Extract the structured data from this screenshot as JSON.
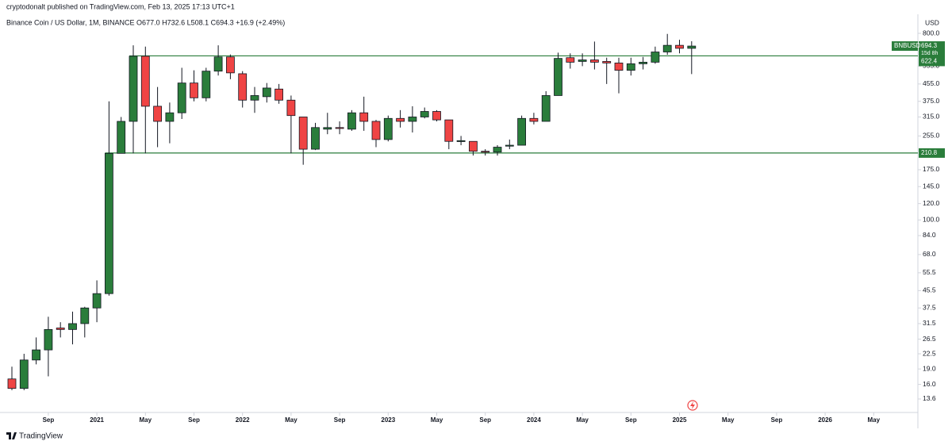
{
  "chart_data": {
    "type": "candlestick",
    "title": "cryptodonalt published on TradingView.com, Feb 13, 2025 17:13 UTC+1",
    "subtitle": "Binance Coin / US Dollar, 1M, BINANCE  O677.0  H732.6  L508.1  C694.3  +16.9 (+2.49%)",
    "symbol": "BNBUSD",
    "countdown": "15d 8h",
    "y_axis_label": "USD",
    "brand": "TradingView",
    "up_color": "#2a7d3b",
    "down_color": "#ef4444",
    "line_color": "#2a7d3b",
    "log": true,
    "open": [
      17,
      15.3,
      21,
      23.5,
      30,
      29.5,
      31.5,
      37.5,
      44,
      210,
      300,
      620,
      355,
      300,
      330,
      460,
      390,
      525,
      615,
      510,
      380,
      395,
      430,
      380,
      315,
      220,
      275,
      280,
      275,
      330,
      300,
      245,
      310,
      300,
      315,
      335,
      305,
      240,
      240,
      215,
      213,
      228,
      230,
      310,
      300,
      400,
      610,
      585,
      595,
      585,
      575,
      530,
      570,
      580,
      650,
      700,
      677.0
    ],
    "high": [
      19.5,
      22.5,
      27,
      34,
      32,
      36,
      38,
      51,
      375,
      315,
      700,
      690,
      440,
      370,
      545,
      530,
      545,
      700,
      632,
      525,
      440,
      460,
      455,
      400,
      315,
      295,
      330,
      300,
      340,
      395,
      305,
      320,
      340,
      355,
      350,
      340,
      305,
      255,
      240,
      220,
      230,
      245,
      320,
      330,
      420,
      645,
      640,
      640,
      730,
      610,
      610,
      610,
      615,
      690,
      795,
      745,
      732.6
    ],
    "low": [
      15,
      15,
      20,
      17.5,
      27,
      25,
      27,
      32,
      43,
      210,
      210,
      210,
      225,
      235,
      308,
      375,
      375,
      500,
      480,
      350,
      330,
      370,
      365,
      210,
      185,
      218,
      260,
      260,
      270,
      270,
      225,
      240,
      280,
      265,
      310,
      300,
      220,
      230,
      205,
      205,
      205,
      220,
      230,
      290,
      300,
      400,
      540,
      555,
      535,
      455,
      410,
      500,
      535,
      570,
      630,
      640,
      508.1
    ],
    "close": [
      15.3,
      21,
      23.5,
      29.5,
      29.5,
      31.5,
      37.5,
      44,
      210,
      300,
      620,
      355,
      300,
      330,
      460,
      390,
      525,
      615,
      515,
      380,
      400,
      435,
      380,
      320,
      220,
      280,
      280,
      278,
      330,
      300,
      245,
      310,
      300,
      315,
      335,
      305,
      240,
      242,
      215,
      214,
      225,
      230,
      310,
      300,
      400,
      605,
      580,
      595,
      580,
      575,
      530,
      570,
      580,
      650,
      700,
      677,
      694.3
    ],
    "xticks": [
      "Sep",
      "2021",
      "May",
      "Sep",
      "2022",
      "May",
      "Sep",
      "2023",
      "May",
      "Sep",
      "2024",
      "May",
      "Sep",
      "2025",
      "May",
      "Sep",
      "2026",
      "May"
    ],
    "ylim": [
      11.7,
      972
    ],
    "yticks": [
      {
        "value": 800,
        "label": "800.0"
      },
      {
        "value": 555,
        "label": "555.0"
      },
      {
        "value": 455,
        "label": "455.0"
      },
      {
        "value": 375,
        "label": "375.0"
      },
      {
        "value": 315,
        "label": "315.0"
      },
      {
        "value": 255,
        "label": "255.0"
      },
      {
        "value": 175,
        "label": "175.0"
      },
      {
        "value": 145,
        "label": "145.0"
      },
      {
        "value": 120,
        "label": "120.0"
      },
      {
        "value": 100,
        "label": "100.0"
      },
      {
        "value": 84,
        "label": "84.0"
      },
      {
        "value": 68,
        "label": "68.0"
      },
      55.5,
      45.5,
      37.5,
      31.5,
      26.5,
      22.5,
      {
        "value": 19,
        "label": "19.0"
      },
      {
        "value": 16,
        "label": "16.0"
      },
      13.6
    ],
    "levels": [
      622.4,
      210.8
    ]
  }
}
